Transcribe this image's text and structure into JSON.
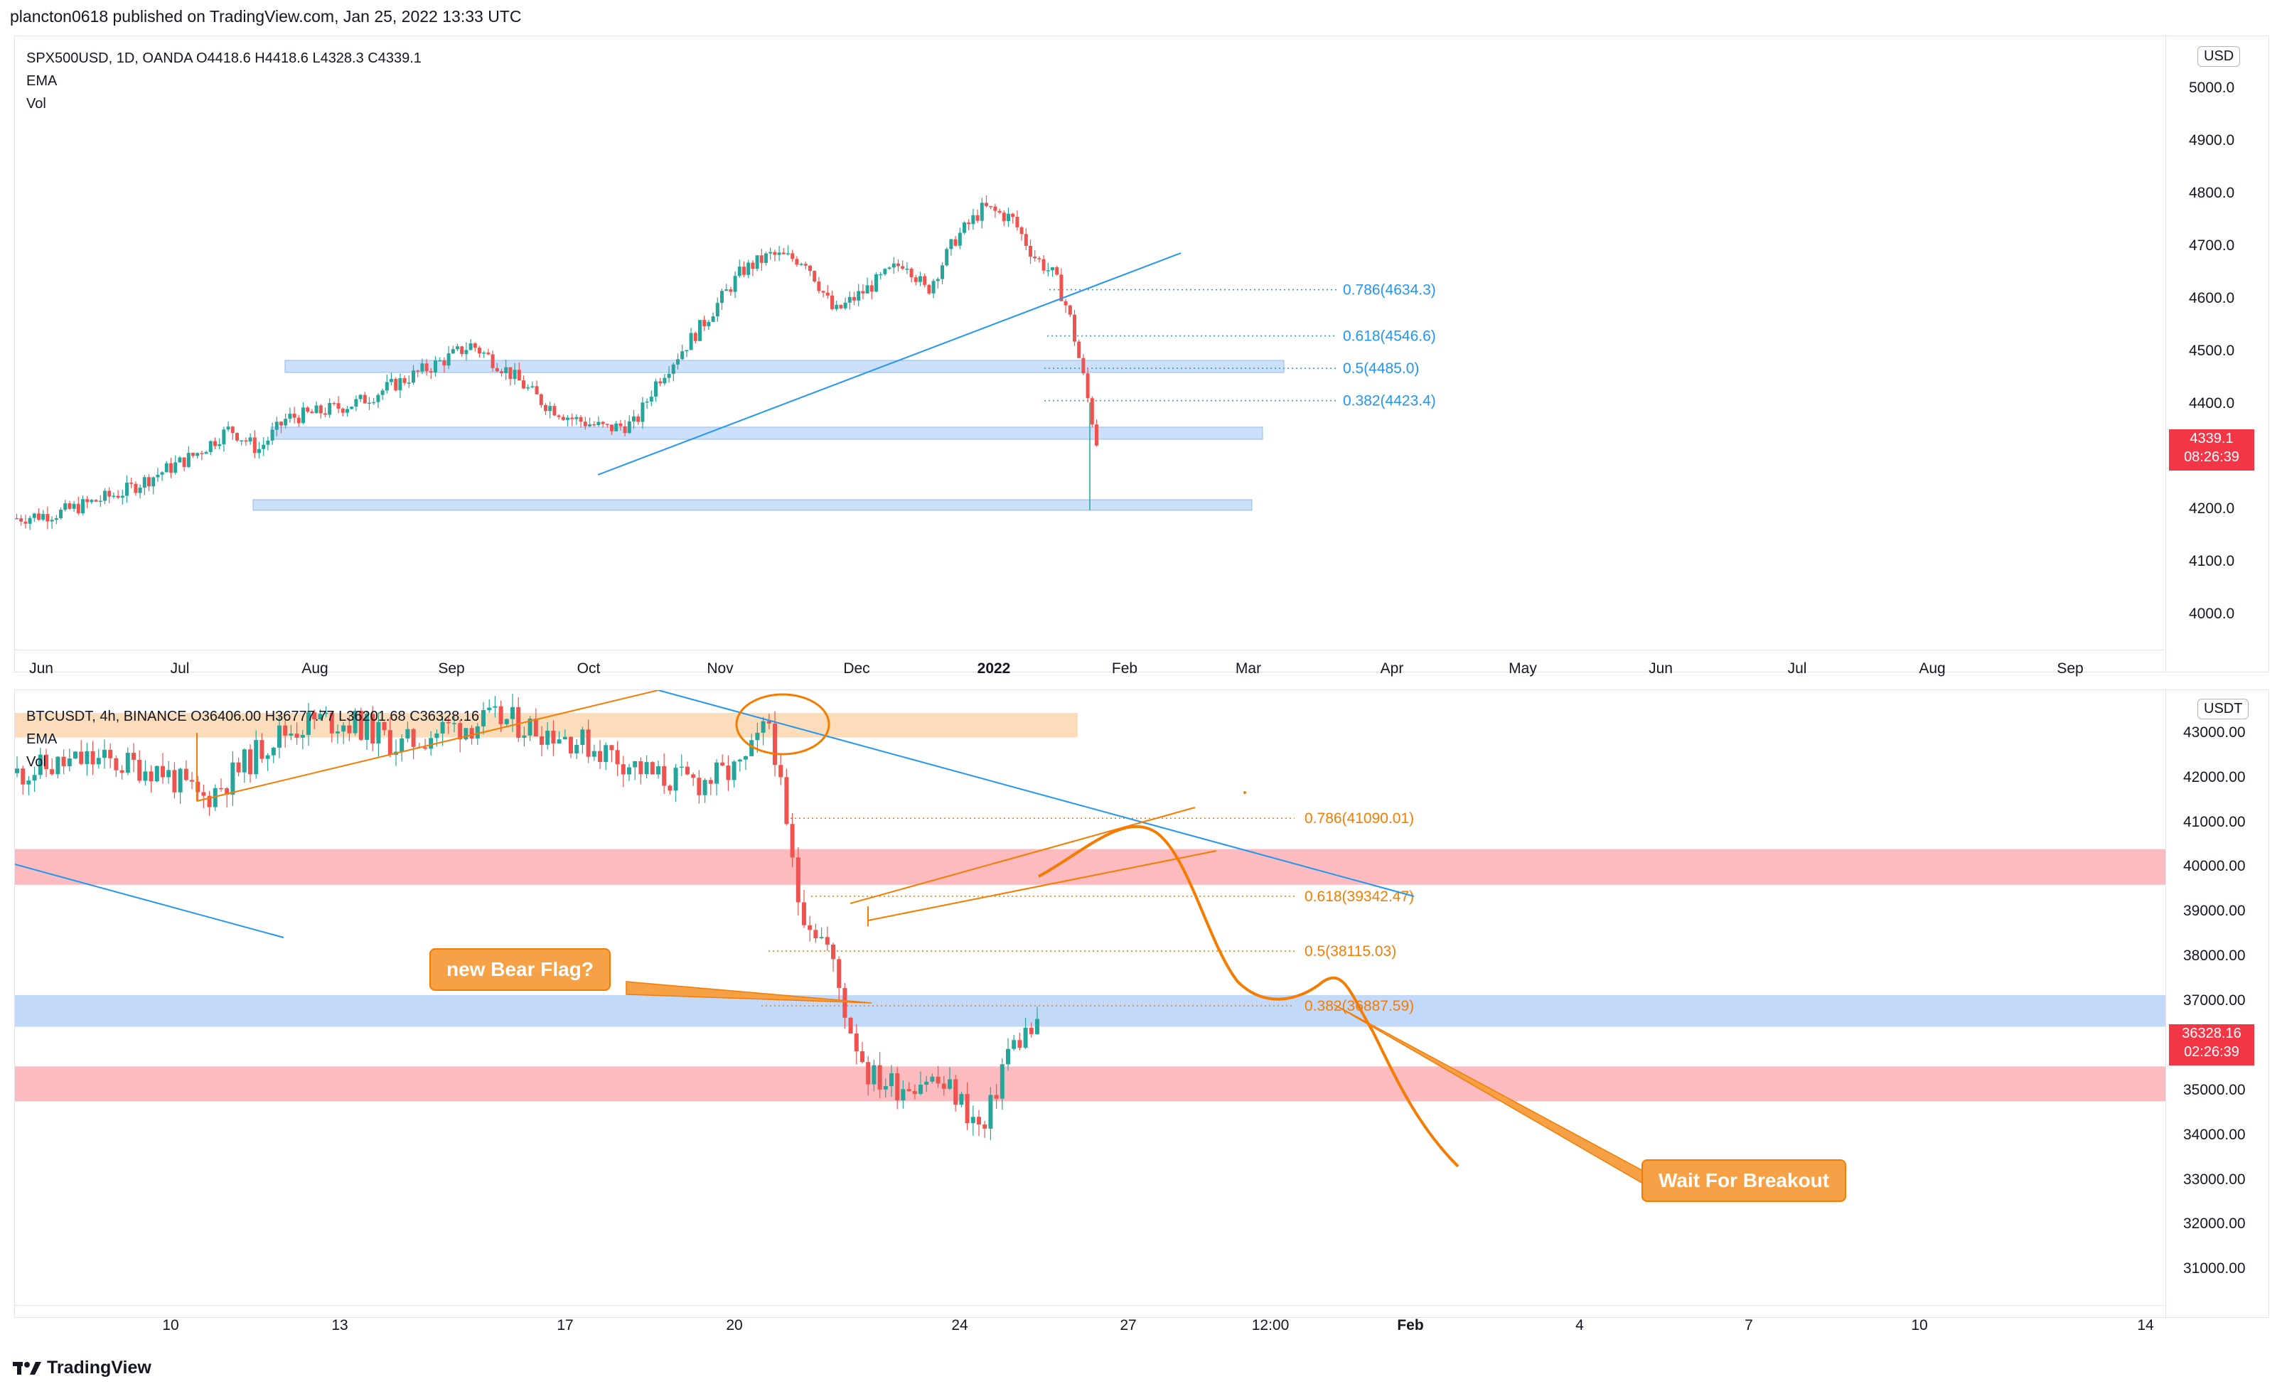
{
  "header": {
    "publisher": "plancton0618 published on TradingView.com, Jan 25, 2022 13:33 UTC"
  },
  "footer": {
    "brand": "TradingView"
  },
  "colors": {
    "up": "#26a69a",
    "down": "#ef5350",
    "blue_line": "#2196f3",
    "orange": "#f57c00",
    "blue_zone": "#bbd5f8",
    "red_zone": "#fbb4b8",
    "orange_zone": "#fbd8b4",
    "tag_red": "#f23645"
  },
  "top_pane": {
    "legend": {
      "symbol": "SPX500USD, 1D, OANDA  O4418.6  H4418.6  L4328.3  C4339.1",
      "ema": "EMA",
      "vol": "Vol"
    },
    "currency": "USD",
    "price_tag": {
      "price": "4339.1",
      "countdown": "08:26:39"
    },
    "y_ticks": [
      "5000.0",
      "4900.0",
      "4800.0",
      "4700.0",
      "4600.0",
      "4500.0",
      "4400.0",
      "4200.0",
      "4100.0",
      "4000.0"
    ],
    "x_ticks": [
      "Jun",
      "Jul",
      "Aug",
      "Sep",
      "Oct",
      "Nov",
      "Dec",
      "2022",
      "Feb",
      "Mar",
      "Apr",
      "May",
      "Jun",
      "Jul",
      "Aug",
      "Sep"
    ],
    "fib_levels": [
      "0.786(4634.3)",
      "0.618(4546.6)",
      "0.5(4485.0)",
      "0.382(4423.4)"
    ]
  },
  "bottom_pane": {
    "legend": {
      "symbol": "BTCUSDT, 4h, BINANCE  O36406.00  H36777.77  L36201.68  C36328.16",
      "ema": "EMA",
      "vol": "Vol"
    },
    "currency": "USDT",
    "price_tag": {
      "price": "36328.16",
      "countdown": "02:26:39"
    },
    "y_ticks": [
      "43000.00",
      "42000.00",
      "41000.00",
      "40000.00",
      "39000.00",
      "38000.00",
      "37000.00",
      "35000.00",
      "34000.00",
      "33000.00",
      "32000.00",
      "31000.00"
    ],
    "x_ticks": [
      "10",
      "13",
      "17",
      "20",
      "24",
      "27",
      "12:00",
      "Feb",
      "4",
      "7",
      "10",
      "14"
    ],
    "fib_levels": [
      "0.786(41090.01)",
      "0.618(39342.47)",
      "0.5(38115.03)",
      "0.382(36887.59)"
    ],
    "callouts": {
      "bear_flag": "new Bear Flag?",
      "breakout": "Wait For Breakout"
    }
  },
  "chart_data": [
    {
      "type": "candlestick",
      "title": "SPX500USD, 1D, OANDA",
      "ylim": [
        3990,
        5100
      ],
      "x_range": [
        "2021-06",
        "2022-09"
      ],
      "series": [
        {
          "name": "SPX500USD",
          "values": [
            4200,
            4240,
            4280,
            4330,
            4380,
            4410,
            4430,
            4470,
            4530,
            4450,
            4360,
            4440,
            4540,
            4600,
            4680,
            4700,
            4620,
            4690,
            4800,
            4700,
            4590,
            4480,
            4339
          ]
        }
      ],
      "fib": [
        {
          "level": 0.786,
          "price": 4634.3
        },
        {
          "level": 0.618,
          "price": 4546.6
        },
        {
          "level": 0.5,
          "price": 4485.0
        },
        {
          "level": 0.382,
          "price": 4423.4
        }
      ],
      "zones": [
        [
          4477,
          4500
        ],
        [
          4350,
          4373
        ],
        [
          4215,
          4235
        ]
      ]
    },
    {
      "type": "candlestick",
      "title": "BTCUSDT, 4h, BINANCE",
      "ylim": [
        30300,
        43800
      ],
      "series": [
        {
          "name": "BTCUSDT",
          "values": [
            42000,
            42500,
            41800,
            42800,
            43200,
            42600,
            42100,
            42600,
            43400,
            38000,
            36200,
            35000,
            34800,
            35500,
            33500,
            36000,
            36328
          ]
        }
      ],
      "fib": [
        {
          "level": 0.786,
          "price": 41090.01
        },
        {
          "level": 0.618,
          "price": 39342.47
        },
        {
          "level": 0.5,
          "price": 38115.03
        },
        {
          "level": 0.382,
          "price": 36887.59
        }
      ],
      "zones": [
        [
          39600,
          40400
        ],
        [
          36420,
          37130
        ],
        [
          34750,
          35530
        ],
        [
          42900,
          43450
        ]
      ]
    }
  ]
}
